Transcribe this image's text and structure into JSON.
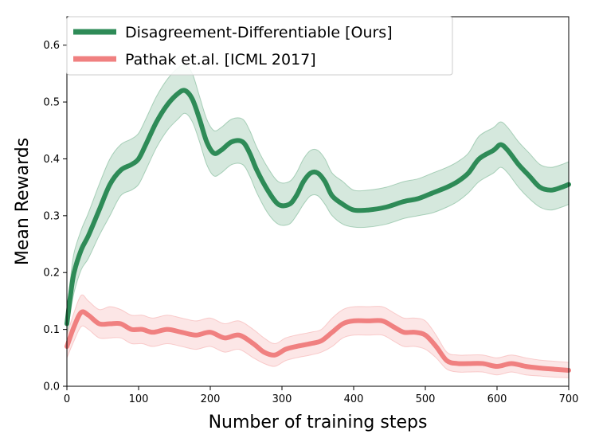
{
  "chart_data": {
    "type": "line",
    "xlabel": "Number of training steps",
    "ylabel": "Mean Rewards",
    "xlim": [
      0,
      700
    ],
    "ylim": [
      0,
      0.65
    ],
    "xticks": [
      0,
      100,
      200,
      300,
      400,
      500,
      600,
      700
    ],
    "yticks": [
      0.0,
      0.1,
      0.2,
      0.3,
      0.4,
      0.5,
      0.6
    ],
    "xtick_labels": [
      "0",
      "100",
      "200",
      "300",
      "400",
      "500",
      "600",
      "700"
    ],
    "ytick_labels": [
      "0.0",
      "0.1",
      "0.2",
      "0.3",
      "0.4",
      "0.5",
      "0.6"
    ],
    "grid": false,
    "legend_position": "top-left",
    "series": [
      {
        "name": "Disagreement-Differentiable [Ours]",
        "color": "#2e8b57",
        "band_color": "#2e8b57",
        "x": [
          0,
          5,
          10,
          20,
          30,
          45,
          60,
          75,
          90,
          100,
          110,
          125,
          140,
          155,
          165,
          175,
          185,
          195,
          205,
          215,
          230,
          245,
          255,
          265,
          280,
          295,
          310,
          320,
          330,
          340,
          350,
          360,
          370,
          385,
          400,
          420,
          445,
          470,
          490,
          510,
          530,
          545,
          560,
          575,
          595,
          605,
          615,
          630,
          645,
          660,
          675,
          690,
          700
        ],
        "y": [
          0.11,
          0.16,
          0.2,
          0.24,
          0.265,
          0.31,
          0.355,
          0.38,
          0.39,
          0.4,
          0.425,
          0.465,
          0.495,
          0.515,
          0.52,
          0.505,
          0.47,
          0.43,
          0.41,
          0.415,
          0.43,
          0.43,
          0.41,
          0.38,
          0.345,
          0.32,
          0.32,
          0.335,
          0.36,
          0.375,
          0.375,
          0.36,
          0.335,
          0.32,
          0.31,
          0.31,
          0.315,
          0.325,
          0.33,
          0.34,
          0.35,
          0.36,
          0.375,
          0.4,
          0.415,
          0.425,
          0.415,
          0.39,
          0.37,
          0.35,
          0.345,
          0.35,
          0.355
        ],
        "lower": [
          0.09,
          0.13,
          0.165,
          0.205,
          0.225,
          0.265,
          0.3,
          0.335,
          0.345,
          0.355,
          0.38,
          0.42,
          0.45,
          0.47,
          0.48,
          0.465,
          0.43,
          0.39,
          0.37,
          0.375,
          0.39,
          0.39,
          0.37,
          0.34,
          0.305,
          0.285,
          0.285,
          0.3,
          0.32,
          0.335,
          0.335,
          0.32,
          0.3,
          0.285,
          0.28,
          0.28,
          0.285,
          0.295,
          0.3,
          0.305,
          0.315,
          0.325,
          0.34,
          0.36,
          0.375,
          0.385,
          0.375,
          0.35,
          0.33,
          0.315,
          0.31,
          0.315,
          0.32
        ],
        "upper": [
          0.13,
          0.19,
          0.235,
          0.275,
          0.305,
          0.355,
          0.4,
          0.425,
          0.435,
          0.445,
          0.47,
          0.51,
          0.54,
          0.56,
          0.565,
          0.55,
          0.51,
          0.47,
          0.45,
          0.455,
          0.47,
          0.47,
          0.45,
          0.42,
          0.385,
          0.36,
          0.36,
          0.375,
          0.4,
          0.415,
          0.415,
          0.4,
          0.375,
          0.36,
          0.345,
          0.345,
          0.35,
          0.36,
          0.365,
          0.375,
          0.385,
          0.395,
          0.41,
          0.44,
          0.455,
          0.465,
          0.455,
          0.43,
          0.41,
          0.39,
          0.385,
          0.39,
          0.395
        ]
      },
      {
        "name": "Pathak et.al. [ICML 2017]",
        "color": "#f08080",
        "band_color": "#f08080",
        "x": [
          0,
          10,
          20,
          30,
          45,
          60,
          75,
          90,
          105,
          120,
          140,
          160,
          180,
          200,
          220,
          240,
          260,
          275,
          290,
          305,
          320,
          340,
          355,
          370,
          385,
          400,
          420,
          440,
          455,
          470,
          485,
          500,
          515,
          530,
          545,
          560,
          580,
          600,
          620,
          640,
          660,
          680,
          700
        ],
        "y": [
          0.07,
          0.105,
          0.13,
          0.125,
          0.11,
          0.11,
          0.11,
          0.1,
          0.1,
          0.095,
          0.1,
          0.095,
          0.09,
          0.095,
          0.085,
          0.09,
          0.075,
          0.06,
          0.055,
          0.065,
          0.07,
          0.075,
          0.08,
          0.095,
          0.11,
          0.115,
          0.115,
          0.115,
          0.105,
          0.095,
          0.095,
          0.09,
          0.07,
          0.045,
          0.04,
          0.04,
          0.04,
          0.035,
          0.04,
          0.035,
          0.032,
          0.03,
          0.028
        ],
        "lower": [
          0.05,
          0.08,
          0.105,
          0.1,
          0.085,
          0.085,
          0.085,
          0.075,
          0.075,
          0.07,
          0.075,
          0.07,
          0.065,
          0.07,
          0.06,
          0.065,
          0.05,
          0.04,
          0.035,
          0.045,
          0.05,
          0.055,
          0.06,
          0.07,
          0.085,
          0.09,
          0.09,
          0.09,
          0.08,
          0.07,
          0.07,
          0.065,
          0.05,
          0.03,
          0.025,
          0.025,
          0.025,
          0.02,
          0.025,
          0.02,
          0.018,
          0.016,
          0.015
        ],
        "upper": [
          0.09,
          0.13,
          0.16,
          0.15,
          0.135,
          0.14,
          0.135,
          0.125,
          0.125,
          0.12,
          0.125,
          0.12,
          0.115,
          0.12,
          0.11,
          0.115,
          0.1,
          0.085,
          0.075,
          0.085,
          0.09,
          0.095,
          0.1,
          0.12,
          0.135,
          0.14,
          0.14,
          0.14,
          0.13,
          0.12,
          0.12,
          0.115,
          0.09,
          0.06,
          0.055,
          0.055,
          0.055,
          0.05,
          0.055,
          0.05,
          0.046,
          0.044,
          0.042
        ]
      }
    ]
  }
}
